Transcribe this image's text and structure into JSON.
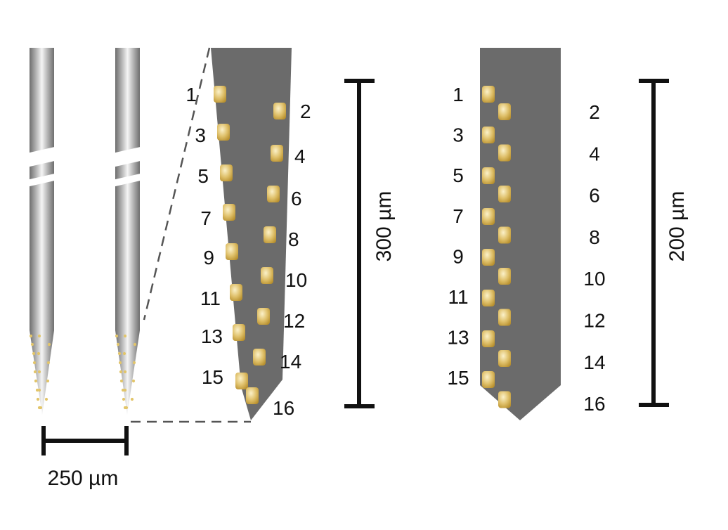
{
  "colors": {
    "probe_body": "#6b6b6b",
    "needle_gradient": [
      "#6e6e6e",
      "#bdbdbd",
      "#f5f5f5",
      "#bdbdbd",
      "#6e6e6e"
    ],
    "electrode_pad": "#d8b65a",
    "electrode_highlight": "#fbf1c9",
    "scale_bar": "#111111",
    "dash_line": "#555555"
  },
  "scale_bars": {
    "shank_spacing": "250 µm",
    "tapered_probe_length": "300 µm",
    "straight_probe_length": "200 µm"
  },
  "tapered_probe": {
    "site_labels": [
      "1",
      "2",
      "3",
      "4",
      "5",
      "6",
      "7",
      "8",
      "9",
      "10",
      "11",
      "12",
      "13",
      "14",
      "15",
      "16"
    ]
  },
  "straight_probe": {
    "site_labels": [
      "1",
      "2",
      "3",
      "4",
      "5",
      "6",
      "7",
      "8",
      "9",
      "10",
      "11",
      "12",
      "13",
      "14",
      "15",
      "16"
    ]
  }
}
